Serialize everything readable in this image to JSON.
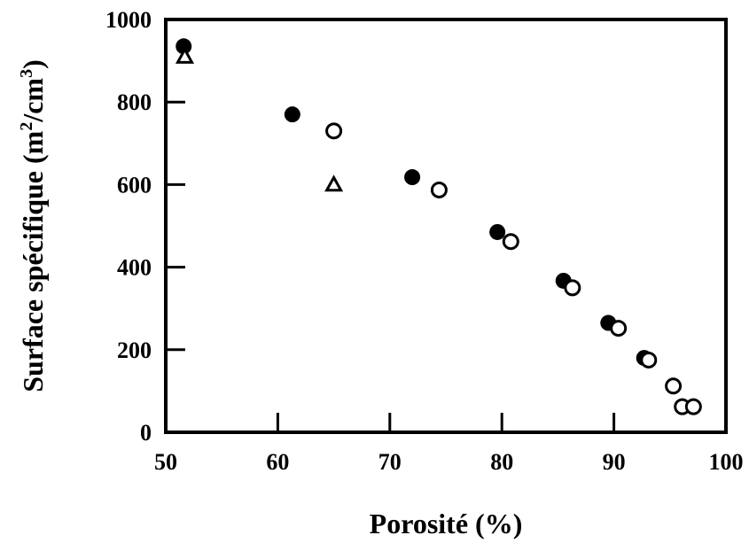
{
  "chart_data": {
    "type": "scatter",
    "title": "",
    "xlabel": "Porosité (%)",
    "ylabel_prefix": "Surface spécifique (m",
    "ylabel_sup1": "2",
    "ylabel_mid": "/cm",
    "ylabel_sup2": "3",
    "ylabel_suffix": ")",
    "xlim": [
      50,
      100
    ],
    "ylim": [
      0,
      1000
    ],
    "xticks": [
      50,
      60,
      70,
      80,
      90,
      100
    ],
    "yticks": [
      0,
      200,
      400,
      600,
      800,
      1000
    ],
    "xtick_labels": [
      "50",
      "60",
      "70",
      "80",
      "90",
      "100"
    ],
    "ytick_labels": [
      "0",
      "200",
      "400",
      "600",
      "800",
      "1000"
    ],
    "grid": false,
    "legend": "none",
    "series": [
      {
        "marker": "filled-circle",
        "color": "#000000",
        "points": [
          [
            51.6,
            935
          ],
          [
            61.3,
            770
          ],
          [
            72.0,
            618
          ],
          [
            79.6,
            485
          ],
          [
            85.5,
            367
          ],
          [
            89.5,
            265
          ],
          [
            92.7,
            180
          ]
        ]
      },
      {
        "marker": "open-circle",
        "color": "#000000",
        "points": [
          [
            65.0,
            730
          ],
          [
            74.4,
            587
          ],
          [
            80.8,
            462
          ],
          [
            86.3,
            350
          ],
          [
            90.4,
            252
          ],
          [
            93.1,
            175
          ],
          [
            95.3,
            112
          ],
          [
            96.1,
            62
          ],
          [
            97.1,
            62
          ]
        ]
      },
      {
        "marker": "open-triangle",
        "color": "#000000",
        "points": [
          [
            51.7,
            910
          ],
          [
            65.0,
            600
          ]
        ]
      }
    ]
  }
}
